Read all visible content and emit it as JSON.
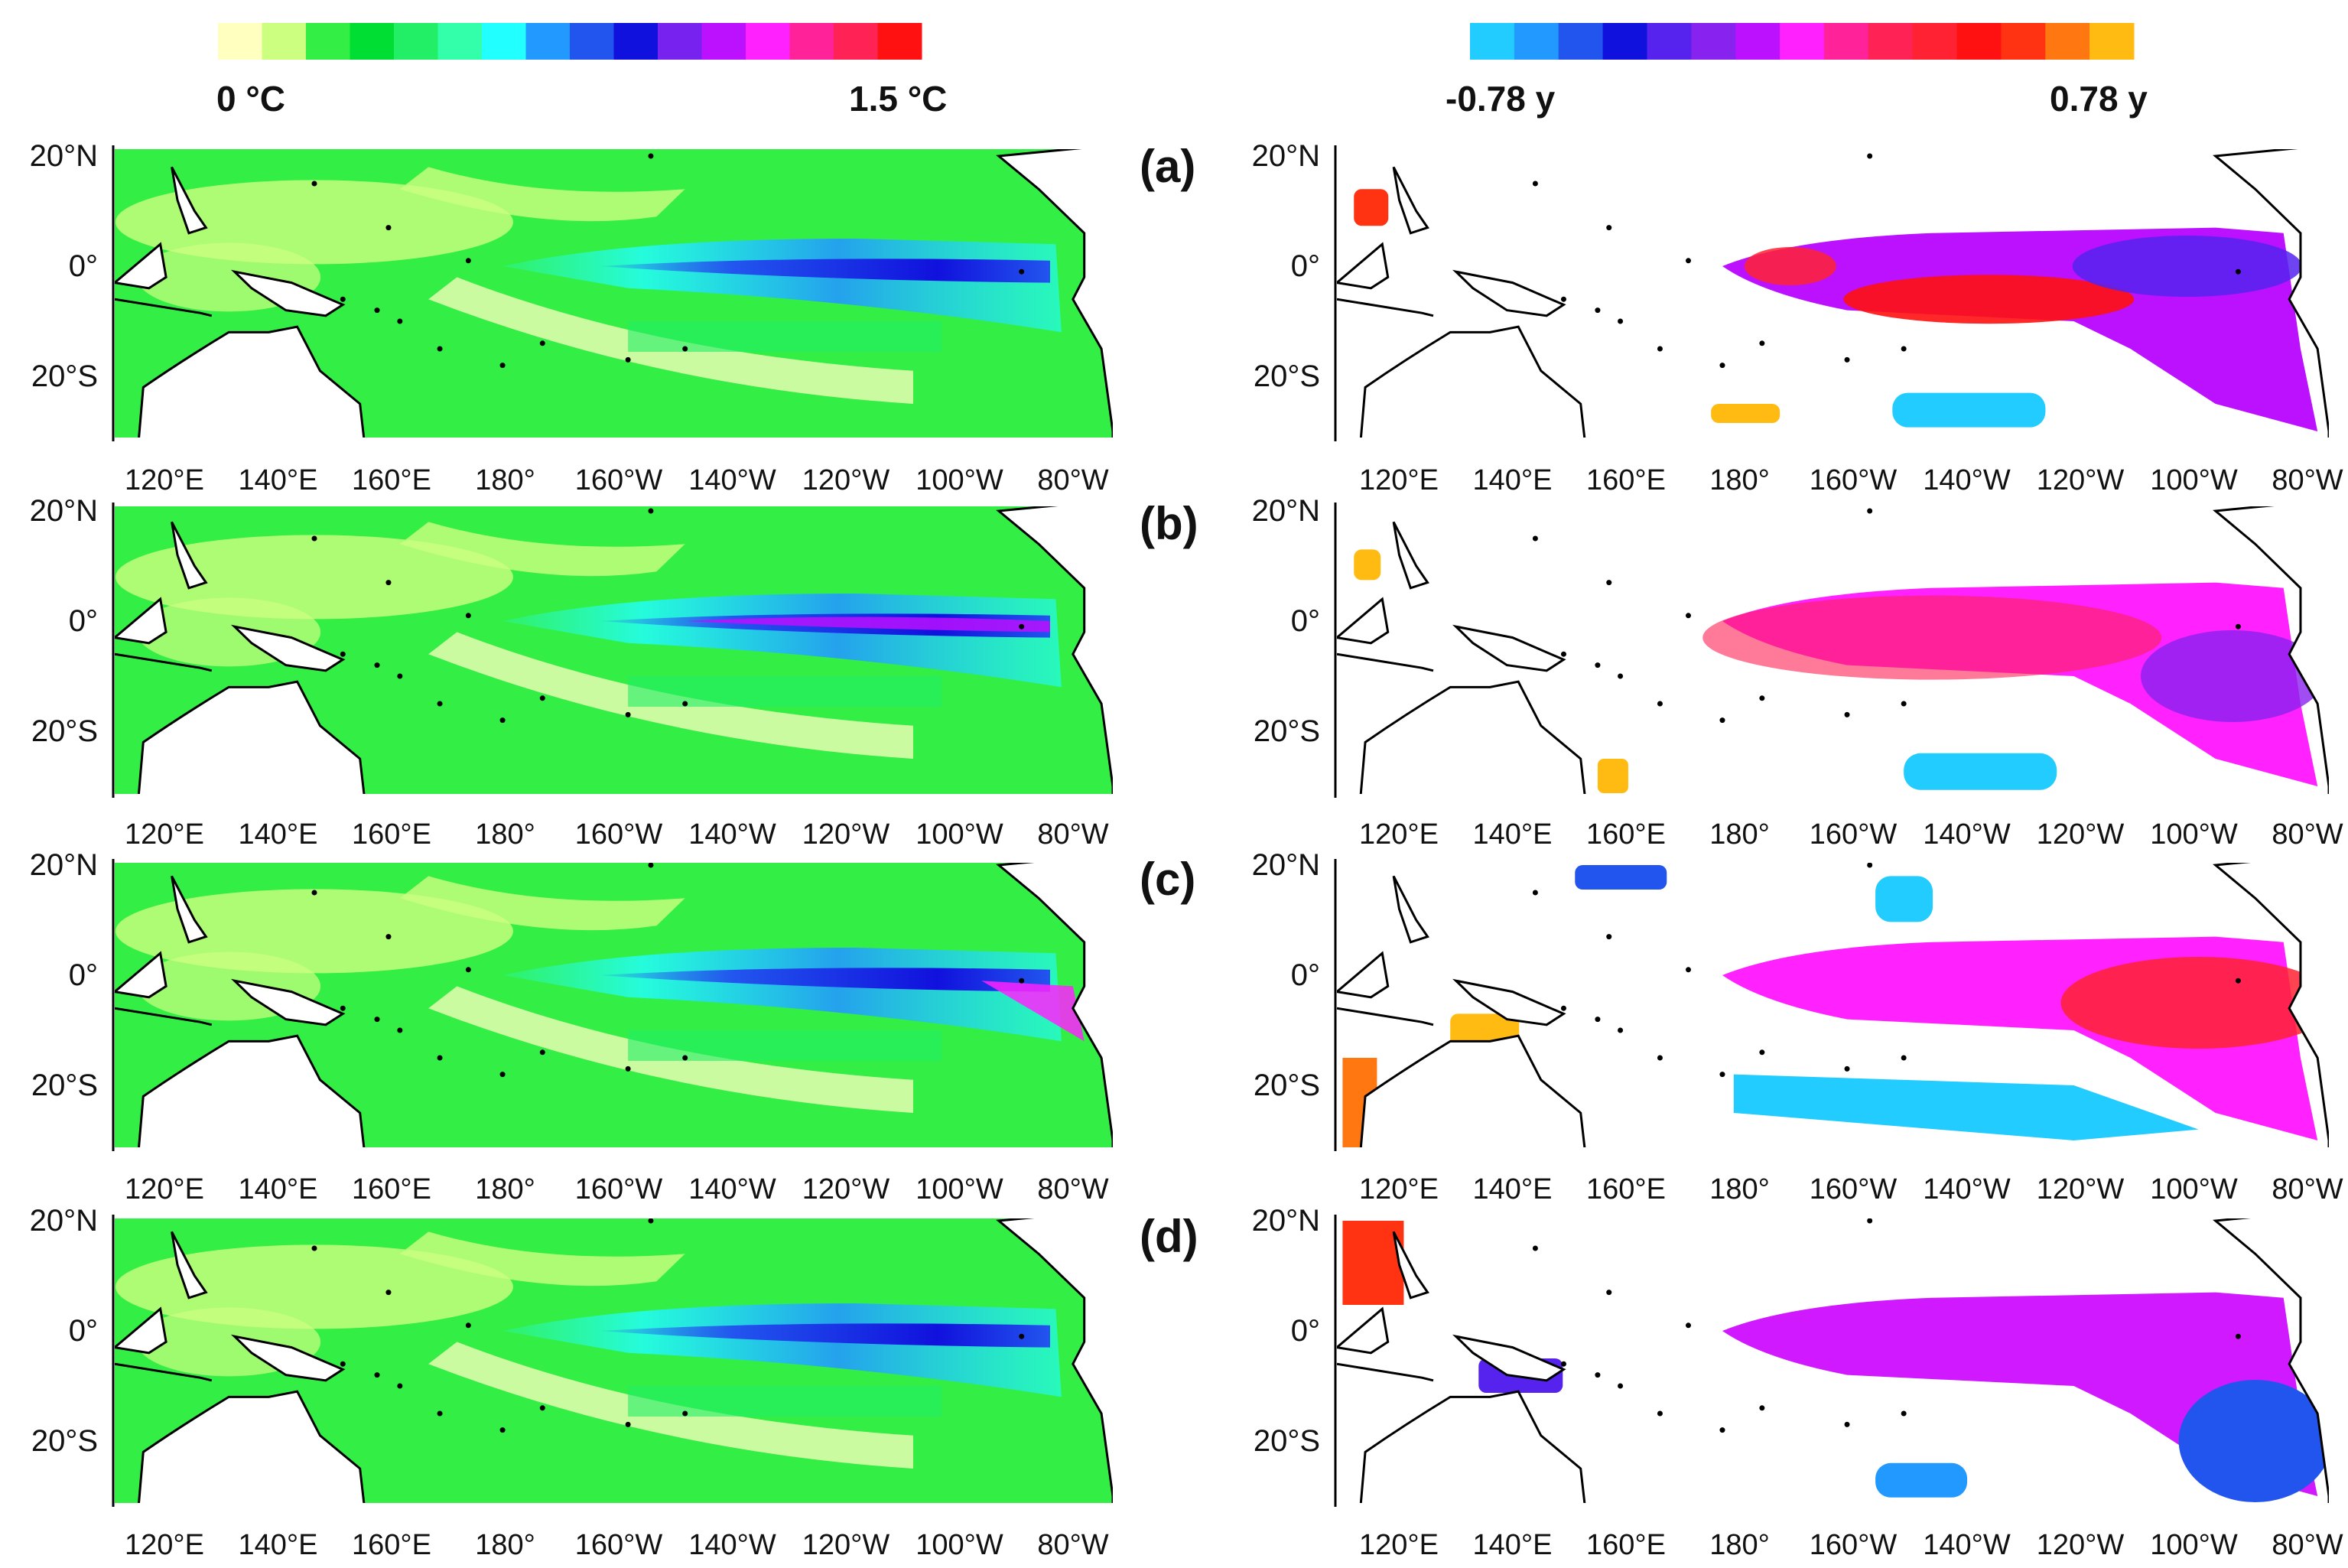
{
  "figure": {
    "panels": [
      {
        "id": "a",
        "label": "(a)"
      },
      {
        "id": "b",
        "label": "(b)"
      },
      {
        "id": "c",
        "label": "(c)"
      },
      {
        "id": "d",
        "label": "(d)"
      }
    ],
    "left_colorbar": {
      "min_label": "0 °C",
      "max_label": "1.5 °C",
      "colors": [
        "#ffffc0",
        "#ccff80",
        "#33ee44",
        "#00dd33",
        "#22ee66",
        "#33ffaa",
        "#22ffff",
        "#2299ff",
        "#2255ee",
        "#1111dd",
        "#7722ee",
        "#bb11ff",
        "#ff22ff",
        "#ff2299",
        "#ff2255",
        "#ff1111"
      ]
    },
    "right_colorbar": {
      "min_label": "-0.78 y",
      "max_label": "0.78 y",
      "colors": [
        "#22ccff",
        "#2299ff",
        "#2255ee",
        "#1111dd",
        "#5522ee",
        "#8822ee",
        "#bb11ff",
        "#ff22ff",
        "#ff2299",
        "#ff2255",
        "#ff2233",
        "#ff1111",
        "#ff3311",
        "#ff7711",
        "#ffbb11"
      ]
    },
    "lat_ticks": [
      "20°N",
      "0°",
      "20°S"
    ],
    "lon_ticks": [
      "120°E",
      "140°E",
      "160°E",
      "180°",
      "160°W",
      "140°W",
      "120°W",
      "100°W",
      "80°W"
    ],
    "colors": {
      "land_fill": "#ffffff",
      "coast": "#000000",
      "field_base": "#33ee44",
      "axis": "#000000"
    }
  },
  "chart_data": [
    {
      "type": "heatmap",
      "description_key": "left column: temperature map panels (a)-(d)",
      "value_range": [
        0,
        1.5
      ],
      "units": "°C",
      "xlim": [
        110,
        285
      ],
      "ylim": [
        -32,
        22
      ],
      "x_ticks": [
        120,
        140,
        160,
        180,
        200,
        220,
        240,
        260,
        280
      ],
      "y_ticks": [
        20,
        0,
        -20
      ]
    },
    {
      "type": "heatmap",
      "description_key": "right column: anomaly map panels (a)-(d)",
      "value_range": [
        -0.78,
        0.78
      ],
      "units": "y",
      "xlim": [
        110,
        285
      ],
      "ylim": [
        -32,
        22
      ],
      "x_ticks": [
        120,
        140,
        160,
        180,
        200,
        220,
        240,
        260,
        280
      ],
      "y_ticks": [
        20,
        0,
        -20
      ]
    }
  ]
}
